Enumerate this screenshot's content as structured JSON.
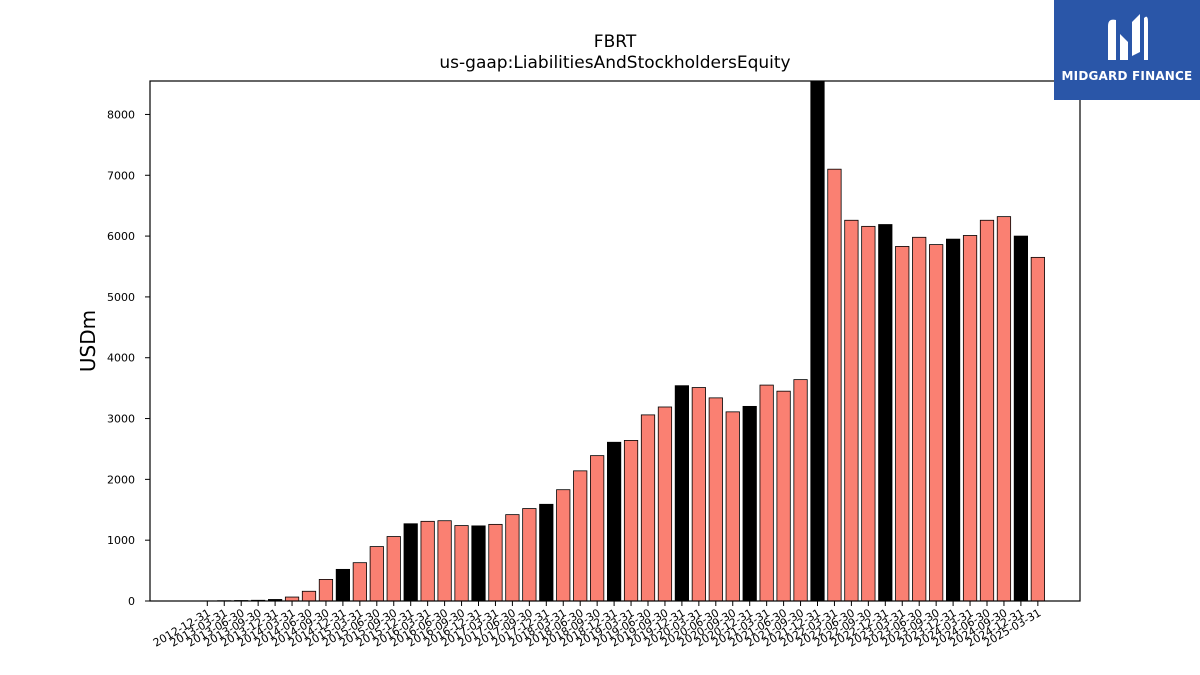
{
  "brand": {
    "name": "MIDGARD FINANCE",
    "bg_color": "#2a56a8",
    "icon": "mf-monogram-logo"
  },
  "chart_data": {
    "type": "bar",
    "title": "FBRT",
    "subtitle": "us-gaap:LiabilitiesAndStockholdersEquity",
    "xlabel": "",
    "ylabel": "USDm",
    "ylim": [
      0,
      8550
    ],
    "yticks": [
      0,
      1000,
      2000,
      3000,
      4000,
      5000,
      6000,
      7000,
      8000
    ],
    "grid": false,
    "colors": {
      "quarter": "#fa8072",
      "fiscal_year_end": "#000000",
      "edge": "#000000"
    },
    "categories": [
      "2012-12-31",
      "2013-03-31",
      "2013-06-30",
      "2013-09-30",
      "2013-12-31",
      "2014-03-31",
      "2014-06-30",
      "2014-09-30",
      "2014-12-31",
      "2015-03-31",
      "2015-06-30",
      "2015-09-30",
      "2015-12-31",
      "2016-03-31",
      "2016-06-30",
      "2016-09-30",
      "2016-12-31",
      "2017-03-31",
      "2017-06-30",
      "2017-09-30",
      "2017-12-31",
      "2018-03-31",
      "2018-06-30",
      "2018-09-30",
      "2018-12-31",
      "2019-03-31",
      "2019-06-30",
      "2019-09-30",
      "2019-12-31",
      "2020-03-31",
      "2020-06-30",
      "2020-09-30",
      "2020-12-31",
      "2021-03-31",
      "2021-06-30",
      "2021-09-30",
      "2021-12-31",
      "2022-03-31",
      "2022-06-30",
      "2022-09-30",
      "2022-12-31",
      "2023-03-31",
      "2023-06-30",
      "2023-09-30",
      "2023-12-31",
      "2024-03-31",
      "2024-06-30",
      "2024-09-30",
      "2024-12-31",
      "2025-03-31"
    ],
    "values": [
      2,
      5,
      8,
      12,
      25,
      65,
      160,
      355,
      520,
      630,
      895,
      1060,
      1270,
      1310,
      1320,
      1240,
      1235,
      1260,
      1420,
      1520,
      1590,
      1830,
      2140,
      2390,
      2610,
      2640,
      3060,
      3190,
      3540,
      3510,
      3340,
      3110,
      3200,
      3550,
      3450,
      3640,
      8540,
      7100,
      6260,
      6160,
      6190,
      5830,
      5980,
      5860,
      5950,
      6010,
      6260,
      6320,
      6000,
      5650
    ],
    "highlight": [
      false,
      false,
      false,
      false,
      true,
      false,
      false,
      false,
      true,
      false,
      false,
      false,
      true,
      false,
      false,
      false,
      true,
      false,
      false,
      false,
      true,
      false,
      false,
      false,
      true,
      false,
      false,
      false,
      true,
      false,
      false,
      false,
      true,
      false,
      false,
      false,
      true,
      false,
      false,
      false,
      true,
      false,
      false,
      false,
      true,
      false,
      false,
      false,
      true,
      false
    ]
  }
}
